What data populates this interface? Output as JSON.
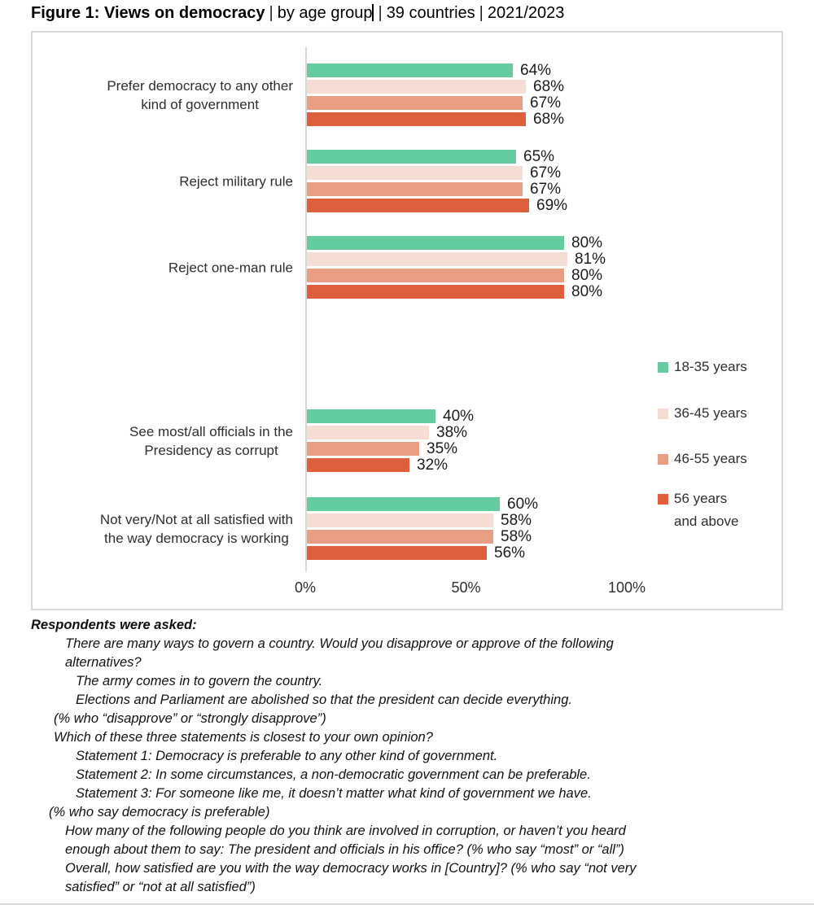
{
  "title": {
    "bold": "Figure 1: Views on democracy",
    "separator": "|",
    "segment_age": "by age group",
    "segment_countries": "39 countries",
    "segment_years": "2021/2023"
  },
  "chart_data": {
    "type": "bar",
    "orientation": "horizontal",
    "title": "Figure 1: Views on democracy | by age group | 39 countries | 2021/2023",
    "xlabel": "",
    "ylabel": "",
    "unit": "%",
    "grid": "off",
    "legend_position": "right-middle",
    "value_labels": "outside-end",
    "x_axis": {
      "tick_labels": [
        "0%",
        "50%",
        "100%"
      ],
      "tick_values": [
        0,
        50,
        100
      ],
      "range": [
        0,
        100
      ]
    },
    "categories": [
      {
        "label": "Prefer democracy to any other kind of government",
        "lines": [
          "Prefer democracy to any other",
          "kind of government"
        ]
      },
      {
        "label": "Reject military rule",
        "lines": [
          "Reject military rule"
        ]
      },
      {
        "label": "Reject one-man rule",
        "lines": [
          "Reject one-man rule"
        ]
      },
      {
        "label": "See most/all officials in the Presidency as corrupt",
        "lines": [
          "See most/all officials in the",
          "Presidency as corrupt"
        ]
      },
      {
        "label": "Not very/Not at all satisfied with the way democracy is working",
        "lines": [
          "Not very/Not at all satisfied with",
          "the way democracy is working"
        ]
      }
    ],
    "series": [
      {
        "name": "18-35 years",
        "color": "#64CC9E",
        "values": [
          64,
          65,
          80,
          40,
          60
        ]
      },
      {
        "name": "36-45 years",
        "color": "#F7DED4",
        "values": [
          68,
          67,
          81,
          38,
          58
        ]
      },
      {
        "name": "46-55 years",
        "color": "#E99D83",
        "values": [
          67,
          67,
          80,
          35,
          58
        ]
      },
      {
        "name": "56 years and above",
        "color": "#DE5F3B",
        "values": [
          68,
          69,
          80,
          32,
          56
        ]
      }
    ],
    "legend": [
      {
        "color": "#64CC9E",
        "lines": [
          "18-35 years"
        ]
      },
      {
        "color": "#F7DED4",
        "lines": [
          "36-45 years"
        ]
      },
      {
        "color": "#E99D83",
        "lines": [
          "46-55 years"
        ]
      },
      {
        "color": "#DE5F3B",
        "lines": [
          "56 years",
          "and above"
        ]
      }
    ]
  },
  "footnotes": {
    "lines": [
      {
        "text": "Respondents were asked:",
        "indent": 0,
        "bold": true
      },
      {
        "text": "There are many ways to govern a country. Would you disapprove or approve of the following",
        "indent": 2
      },
      {
        "text": "alternatives?",
        "indent": 2
      },
      {
        "text": "The army comes in to govern the country.",
        "indent": 3
      },
      {
        "text": "Elections and Parliament are abolished so that the president can decide everything.",
        "indent": 3
      },
      {
        "text": "(% who “disapprove” or “strongly disapprove”)",
        "indent": 1
      },
      {
        "text": "Which of these three statements is closest to your own opinion?",
        "indent": 1
      },
      {
        "text": "Statement 1: Democracy is preferable to any other kind of government.",
        "indent": 3
      },
      {
        "text": "Statement 2: In some circumstances, a non-democratic government can be preferable.",
        "indent": 3
      },
      {
        "text": "Statement 3: For someone like me, it doesn’t matter what kind of government we have.",
        "indent": 3
      },
      {
        "text": "(% who say democracy is preferable)",
        "indent": 0.5
      },
      {
        "text": "How many of the following people do you think are involved in corruption, or haven’t you heard",
        "indent": 2
      },
      {
        "text": "enough about them to say: The president and officials in his office? (% who say “most” or “all”)",
        "indent": 2
      },
      {
        "text": "Overall, how satisfied are you with the way democracy works in [Country]? (% who say “not very",
        "indent": 2
      },
      {
        "text": "satisfied” or “not at all satisfied”)",
        "indent": 2
      }
    ]
  },
  "colors": {
    "chart_border": "#D9D9D9",
    "axis_line": "#D9D9D9",
    "title_text": "#000000",
    "body_text": "#1c1c1c"
  }
}
